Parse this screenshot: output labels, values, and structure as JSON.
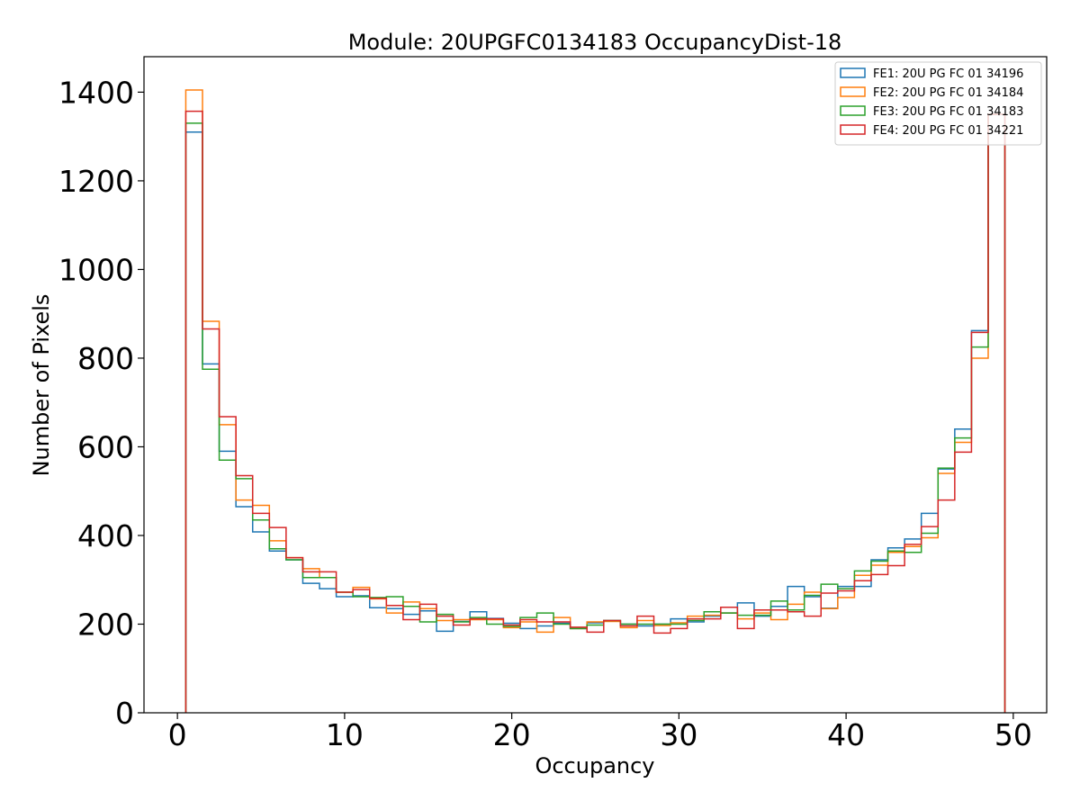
{
  "chart_data": {
    "type": "histogram-step",
    "title": "Module: 20UPGFC0134183 OccupancyDist-18",
    "xlabel": "Occupancy",
    "ylabel": "Number of Pixels",
    "xlim": [
      -2,
      52
    ],
    "ylim": [
      0,
      1480
    ],
    "xticks": [
      0,
      10,
      20,
      30,
      40,
      50
    ],
    "yticks": [
      0,
      200,
      400,
      600,
      800,
      1000,
      1200,
      1400
    ],
    "legend_position": "top-right",
    "bin_edges_start": 0.5,
    "bin_width": 1,
    "series": [
      {
        "name": "FE1: 20U PG FC 01 34196",
        "color": "#1f77b4",
        "values": [
          1310,
          787,
          590,
          465,
          408,
          365,
          345,
          292,
          280,
          262,
          264,
          237,
          235,
          222,
          230,
          184,
          206,
          228,
          213,
          202,
          190,
          196,
          202,
          190,
          203,
          208,
          200,
          196,
          200,
          212,
          205,
          218,
          225,
          248,
          218,
          240,
          285,
          262,
          236,
          285,
          285,
          345,
          372,
          392,
          450,
          550,
          640,
          862,
          1350
        ]
      },
      {
        "name": "FE2: 20U PG FC 01 34184",
        "color": "#ff7f0e",
        "values": [
          1405,
          883,
          650,
          480,
          468,
          388,
          350,
          325,
          305,
          272,
          283,
          257,
          225,
          250,
          235,
          208,
          210,
          210,
          210,
          192,
          205,
          182,
          215,
          190,
          205,
          206,
          192,
          208,
          197,
          203,
          218,
          220,
          225,
          212,
          225,
          210,
          245,
          272,
          235,
          260,
          310,
          333,
          362,
          375,
          395,
          540,
          610,
          800,
          1350
        ]
      },
      {
        "name": "FE3: 20U PG FC 01 34183",
        "color": "#2ca02c",
        "values": [
          1330,
          775,
          570,
          528,
          435,
          370,
          345,
          305,
          305,
          272,
          262,
          260,
          262,
          240,
          205,
          222,
          205,
          215,
          200,
          195,
          215,
          225,
          200,
          190,
          198,
          208,
          200,
          200,
          200,
          200,
          208,
          228,
          225,
          220,
          220,
          252,
          232,
          265,
          290,
          280,
          320,
          342,
          365,
          362,
          405,
          552,
          620,
          825,
          1350
        ]
      },
      {
        "name": "FE4: 20U PG FC 01 34221",
        "color": "#d62728",
        "values": [
          1357,
          866,
          668,
          535,
          450,
          418,
          350,
          318,
          318,
          272,
          278,
          258,
          242,
          210,
          245,
          218,
          198,
          212,
          212,
          198,
          210,
          205,
          205,
          193,
          182,
          208,
          196,
          218,
          180,
          190,
          212,
          212,
          238,
          190,
          232,
          232,
          228,
          218,
          270,
          275,
          298,
          312,
          332,
          380,
          420,
          480,
          588,
          858,
          1350
        ]
      }
    ]
  }
}
